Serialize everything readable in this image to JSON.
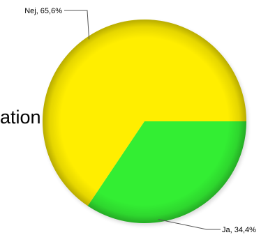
{
  "background_text": "ation",
  "chart_data": {
    "type": "pie",
    "title": "",
    "start_angle_deg": 0,
    "direction": "clockwise",
    "slices": [
      {
        "label": "Ja",
        "value": 34.4,
        "display": "Ja, 34,4%",
        "color": "#33ee33"
      },
      {
        "label": "Nej",
        "value": 65.6,
        "display": "Nej, 65,6%",
        "color": "#ffee00"
      }
    ]
  }
}
